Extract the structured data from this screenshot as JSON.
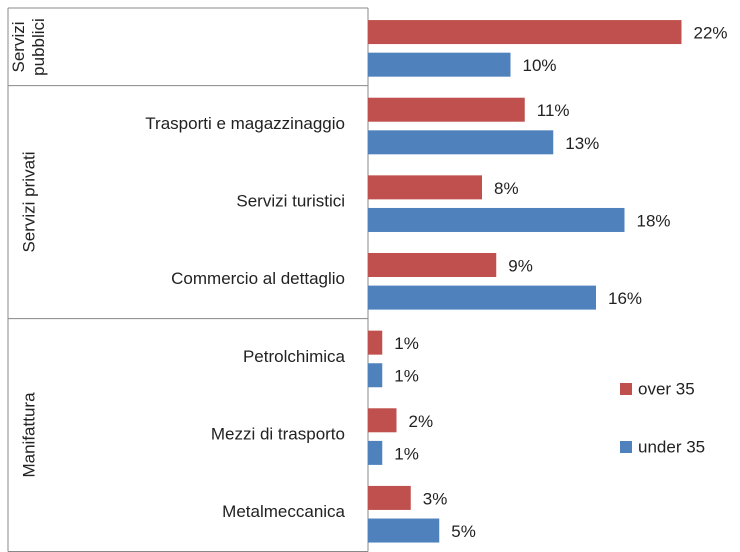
{
  "chart_data": {
    "type": "bar",
    "orientation": "horizontal",
    "groups": [
      "Servizi pubblici",
      "Servizi privati",
      "Manifattura"
    ],
    "categories": [
      null,
      "Trasporti e magazzinaggio",
      "Servizi turistici",
      "Commercio al dettaglio",
      "Petrolchimica",
      "Mezzi di trasporto",
      "Metalmeccanica"
    ],
    "series": [
      {
        "name": "over 35",
        "color": "#c0504d",
        "values": [
          22,
          11,
          8,
          9,
          1,
          2,
          3
        ],
        "value_labels": [
          "22%",
          "11%",
          "8%",
          "9%",
          "1%",
          "2%",
          "3%"
        ]
      },
      {
        "name": "under 35",
        "color": "#4f81bd",
        "values": [
          10,
          13,
          18,
          16,
          1,
          1,
          5
        ],
        "value_labels": [
          "10%",
          "13%",
          "18%",
          "16%",
          "1%",
          "1%",
          "5%"
        ]
      }
    ],
    "legend": "right"
  }
}
